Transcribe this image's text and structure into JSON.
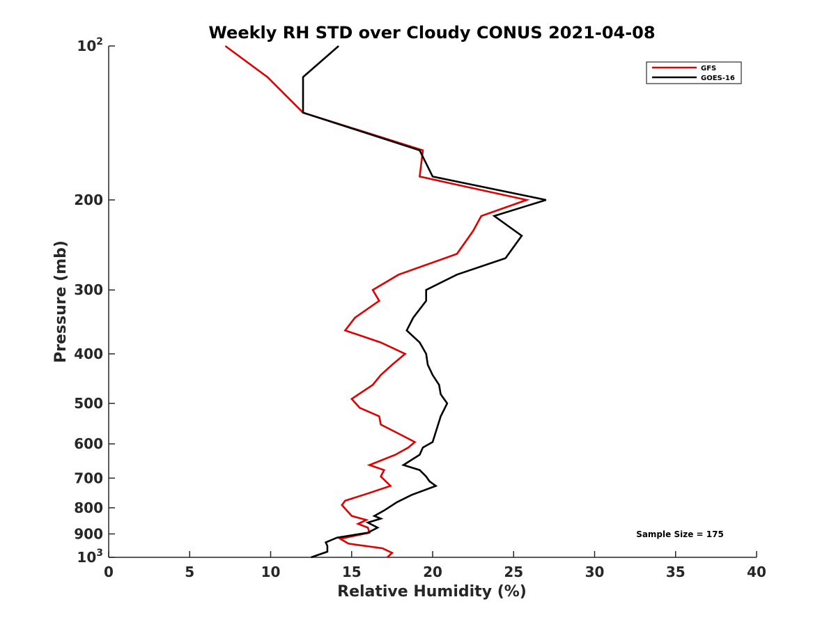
{
  "chart_data": {
    "type": "line",
    "title": "Weekly RH STD over Cloudy CONUS 2021-04-08",
    "xlabel": "Relative Humidity (%)",
    "ylabel": "Pressure (mb)",
    "xlim": [
      0,
      40
    ],
    "ylim": [
      100,
      1000
    ],
    "y_scale": "log",
    "y_reversed": true,
    "x_ticks": [
      "0",
      "5",
      "10",
      "15",
      "20",
      "25",
      "30",
      "35",
      "40"
    ],
    "y_ticks": [
      {
        "value": 100,
        "base": "10",
        "exp": "2"
      },
      {
        "value": 200,
        "label": "200"
      },
      {
        "value": 300,
        "label": "300"
      },
      {
        "value": 400,
        "label": "400"
      },
      {
        "value": 500,
        "label": "500"
      },
      {
        "value": 600,
        "label": "600"
      },
      {
        "value": 700,
        "label": "700"
      },
      {
        "value": 800,
        "label": "800"
      },
      {
        "value": 900,
        "label": "900"
      },
      {
        "value": 1000,
        "base": "10",
        "exp": "3"
      }
    ],
    "legend_position": "top-right",
    "annotation": "Sample Size = 175",
    "series": [
      {
        "name": "GFS",
        "color": "#e00000",
        "points": [
          [
            7.2,
            100
          ],
          [
            9.8,
            115
          ],
          [
            12.0,
            135
          ],
          [
            19.4,
            160
          ],
          [
            19.2,
            180
          ],
          [
            25.8,
            200
          ],
          [
            23.0,
            215
          ],
          [
            22.5,
            230
          ],
          [
            21.5,
            255
          ],
          [
            17.9,
            280
          ],
          [
            16.3,
            300
          ],
          [
            16.7,
            315
          ],
          [
            15.2,
            340
          ],
          [
            14.6,
            360
          ],
          [
            16.8,
            380
          ],
          [
            18.3,
            400
          ],
          [
            17.5,
            420
          ],
          [
            16.8,
            440
          ],
          [
            16.3,
            460
          ],
          [
            15.0,
            490
          ],
          [
            15.5,
            510
          ],
          [
            16.7,
            530
          ],
          [
            16.8,
            550
          ],
          [
            18.0,
            575
          ],
          [
            18.9,
            595
          ],
          [
            18.5,
            610
          ],
          [
            17.7,
            630
          ],
          [
            16.1,
            660
          ],
          [
            17.0,
            675
          ],
          [
            16.8,
            695
          ],
          [
            17.4,
            725
          ],
          [
            16.0,
            750
          ],
          [
            14.6,
            775
          ],
          [
            14.4,
            790
          ],
          [
            15.0,
            830
          ],
          [
            15.9,
            845
          ],
          [
            15.4,
            860
          ],
          [
            16.0,
            875
          ],
          [
            16.1,
            895
          ],
          [
            14.3,
            920
          ],
          [
            14.8,
            940
          ],
          [
            16.9,
            960
          ],
          [
            17.5,
            980
          ],
          [
            17.2,
            1000
          ]
        ]
      },
      {
        "name": "GOES-16",
        "color": "#000000",
        "points": [
          [
            14.2,
            100
          ],
          [
            12.0,
            115
          ],
          [
            12.0,
            135
          ],
          [
            19.2,
            160
          ],
          [
            20.0,
            180
          ],
          [
            27.0,
            200
          ],
          [
            23.8,
            215
          ],
          [
            25.5,
            235
          ],
          [
            24.5,
            260
          ],
          [
            21.5,
            280
          ],
          [
            19.6,
            300
          ],
          [
            19.6,
            315
          ],
          [
            18.8,
            340
          ],
          [
            18.4,
            360
          ],
          [
            19.2,
            380
          ],
          [
            19.6,
            400
          ],
          [
            19.7,
            420
          ],
          [
            20.0,
            440
          ],
          [
            20.4,
            460
          ],
          [
            20.5,
            480
          ],
          [
            20.9,
            500
          ],
          [
            20.5,
            530
          ],
          [
            20.0,
            595
          ],
          [
            19.4,
            610
          ],
          [
            19.2,
            630
          ],
          [
            18.2,
            660
          ],
          [
            19.2,
            675
          ],
          [
            19.6,
            695
          ],
          [
            19.8,
            710
          ],
          [
            20.2,
            725
          ],
          [
            18.7,
            755
          ],
          [
            17.8,
            780
          ],
          [
            17.0,
            810
          ],
          [
            16.4,
            830
          ],
          [
            16.8,
            840
          ],
          [
            16.0,
            855
          ],
          [
            16.6,
            875
          ],
          [
            16.0,
            895
          ],
          [
            14.1,
            915
          ],
          [
            13.4,
            935
          ],
          [
            13.5,
            950
          ],
          [
            13.5,
            975
          ],
          [
            12.5,
            1000
          ]
        ]
      }
    ]
  }
}
